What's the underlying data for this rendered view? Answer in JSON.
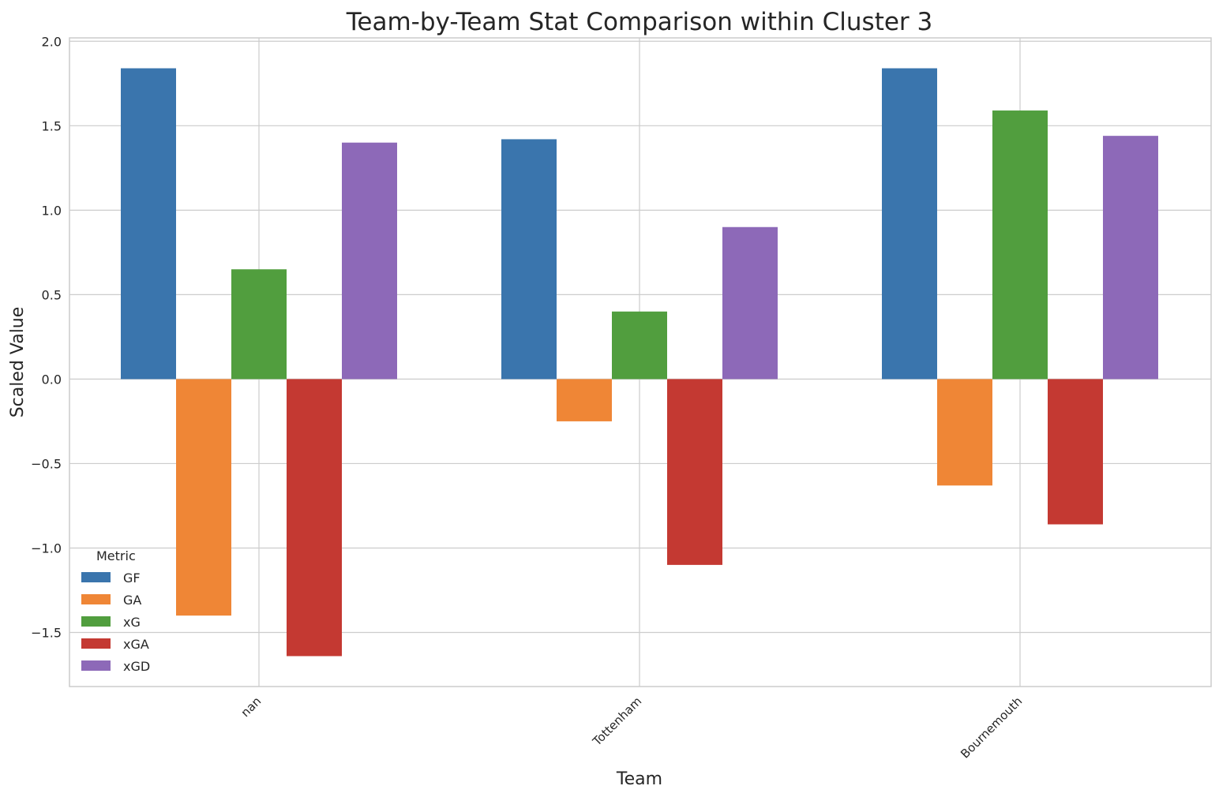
{
  "chart_data": {
    "type": "bar",
    "title": "Team-by-Team Stat Comparison within Cluster 3",
    "xlabel": "Team",
    "ylabel": "Scaled Value",
    "categories": [
      "nan",
      "Tottenham",
      "Bournemouth"
    ],
    "series": [
      {
        "name": "GF",
        "color": "#3a75ad",
        "values": [
          1.84,
          1.42,
          1.84
        ]
      },
      {
        "name": "GA",
        "color": "#ef8636",
        "values": [
          -1.4,
          -0.25,
          -0.63
        ]
      },
      {
        "name": "xG",
        "color": "#519e3e",
        "values": [
          0.65,
          0.4,
          1.59
        ]
      },
      {
        "name": "xGA",
        "color": "#c43932",
        "values": [
          -1.64,
          -1.1,
          -0.86
        ]
      },
      {
        "name": "xGD",
        "color": "#8d69b8",
        "values": [
          1.4,
          0.9,
          1.44
        ]
      }
    ],
    "ylim": [
      -1.82,
      2.02
    ],
    "yticks": [
      "2.0",
      "1.5",
      "1.0",
      "0.5",
      "0.0",
      "−0.5",
      "−1.0",
      "−1.5"
    ],
    "ytick_values": [
      2.0,
      1.5,
      1.0,
      0.5,
      0.0,
      -0.5,
      -1.0,
      -1.5
    ],
    "grid": true,
    "legend": {
      "title": "Metric",
      "position": "lower-left"
    }
  }
}
